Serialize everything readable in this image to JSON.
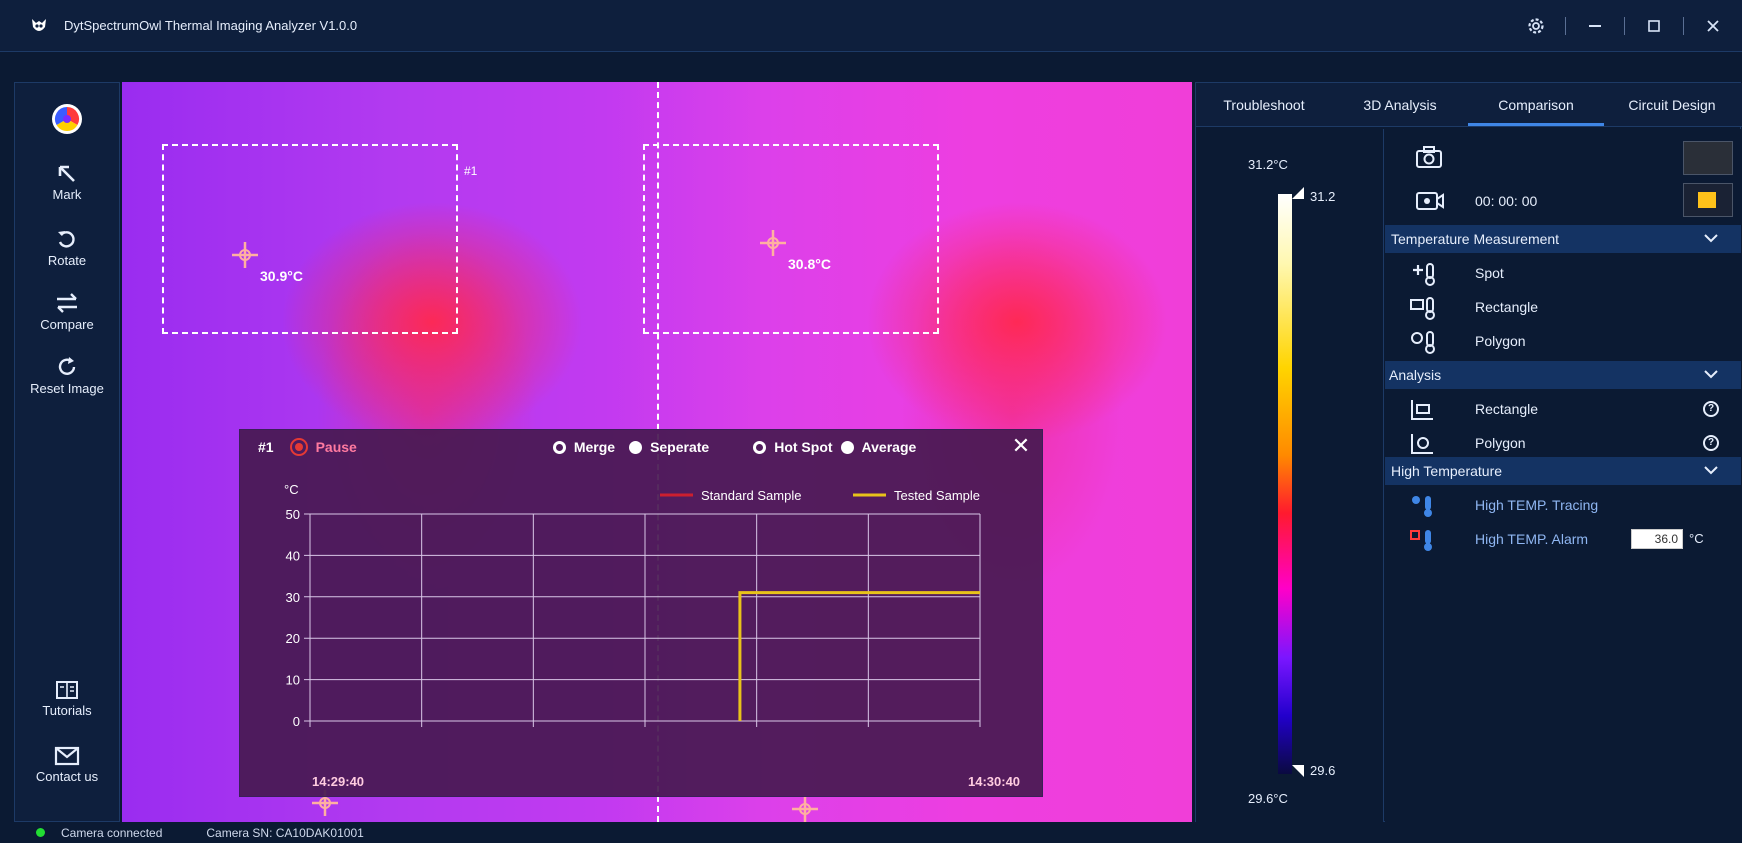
{
  "window": {
    "title": "DytSpectrumOwl Thermal Imaging Analyzer V1.0.0"
  },
  "toolbar": {
    "mark": "Mark",
    "rotate": "Rotate",
    "compare": "Compare",
    "reset": "Reset Image",
    "tutorials": "Tutorials",
    "contact": "Contact us"
  },
  "image": {
    "roi_label": "#1",
    "left_temp": "30.9°C",
    "right_temp": "30.8°C"
  },
  "chart_panel": {
    "id": "#1",
    "pause_label": "Pause",
    "merge_label": "Merge",
    "separate_label": "Seperate",
    "hotspot_label": "Hot Spot",
    "average_label": "Average",
    "close_glyph": "✕"
  },
  "chart_data": {
    "type": "line",
    "ylabel": "°C",
    "ylim": [
      0,
      50
    ],
    "y_ticks": [
      "50",
      "40",
      "30",
      "20",
      "10",
      "0"
    ],
    "x_start_label": "14:29:40",
    "x_end_label": "14:30:40",
    "xlim": [
      0,
      60
    ],
    "series": [
      {
        "name": "Standard Sample",
        "color": "#cc1f2f",
        "x": [],
        "y": []
      },
      {
        "name": "Tested Sample",
        "color": "#e8c31a",
        "x": [
          38.5,
          38.5,
          60
        ],
        "y": [
          0,
          31,
          31
        ]
      }
    ]
  },
  "tabs": [
    {
      "label": "Troubleshoot"
    },
    {
      "label": "3D Analysis"
    },
    {
      "label": "Comparison"
    },
    {
      "label": "Circuit Design"
    }
  ],
  "active_tab": "Comparison",
  "scale": {
    "max_label": "31.2°C",
    "min_label": "29.6°C",
    "high_value": "31.2",
    "low_value": "29.6"
  },
  "capture": {
    "timer": "00: 00: 00"
  },
  "sections": {
    "temperature_measurement": {
      "title": "Temperature Measurement",
      "items": [
        "Spot",
        "Rectangle",
        "Polygon"
      ]
    },
    "analysis": {
      "title": "Analysis",
      "items": [
        "Rectangle",
        "Polygon"
      ]
    },
    "high_temperature": {
      "title": "High Temperature",
      "tracing": "High TEMP. Tracing",
      "alarm": "High TEMP. Alarm",
      "alarm_value": "36.0",
      "alarm_unit": "°C"
    }
  },
  "status": {
    "connection": "Camera connected",
    "serial": "Camera SN: CA10DAK01001"
  },
  "colors": {
    "accent": "#3f86e6",
    "background": "#0b1a33",
    "status_ok": "#22dd33"
  }
}
